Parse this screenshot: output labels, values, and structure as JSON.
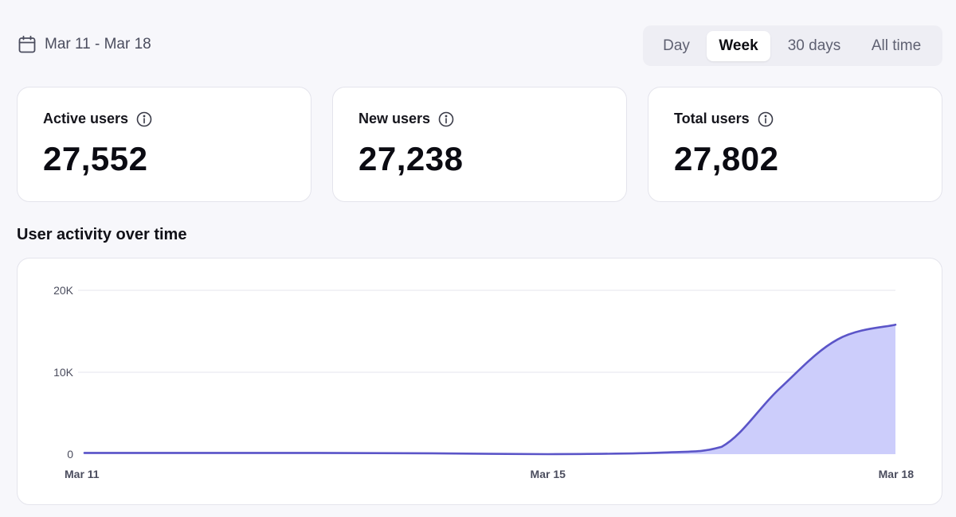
{
  "header": {
    "date_range": "Mar 11 - Mar 18",
    "range_tabs": [
      {
        "label": "Day",
        "selected": false
      },
      {
        "label": "Week",
        "selected": true
      },
      {
        "label": "30 days",
        "selected": false
      },
      {
        "label": "All time",
        "selected": false
      }
    ]
  },
  "stats": [
    {
      "label": "Active users",
      "value": "27,552"
    },
    {
      "label": "New users",
      "value": "27,238"
    },
    {
      "label": "Total users",
      "value": "27,802"
    }
  ],
  "section_title": "User activity over time",
  "colors": {
    "line": "#5b55c8",
    "fill": "#cccdfb",
    "grid": "#e6e6ee"
  },
  "chart_data": {
    "type": "area",
    "title": "User activity over time",
    "xlabel": "",
    "ylabel": "",
    "x": [
      0,
      1,
      2,
      3,
      4,
      5,
      5.5,
      6,
      6.5,
      7
    ],
    "x_tick_labels": [
      {
        "x": 0,
        "label": "Mar 11"
      },
      {
        "x": 4,
        "label": "Mar 15"
      },
      {
        "x": 7,
        "label": "Mar 18"
      }
    ],
    "values": [
      150,
      150,
      150,
      100,
      0,
      200,
      900,
      8000,
      14000,
      15800
    ],
    "ylim": [
      0,
      20000
    ],
    "y_ticks": [
      {
        "value": 0,
        "label": "0"
      },
      {
        "value": 10000,
        "label": "10K"
      },
      {
        "value": 20000,
        "label": "20K"
      }
    ],
    "grid": true,
    "legend": "none"
  }
}
